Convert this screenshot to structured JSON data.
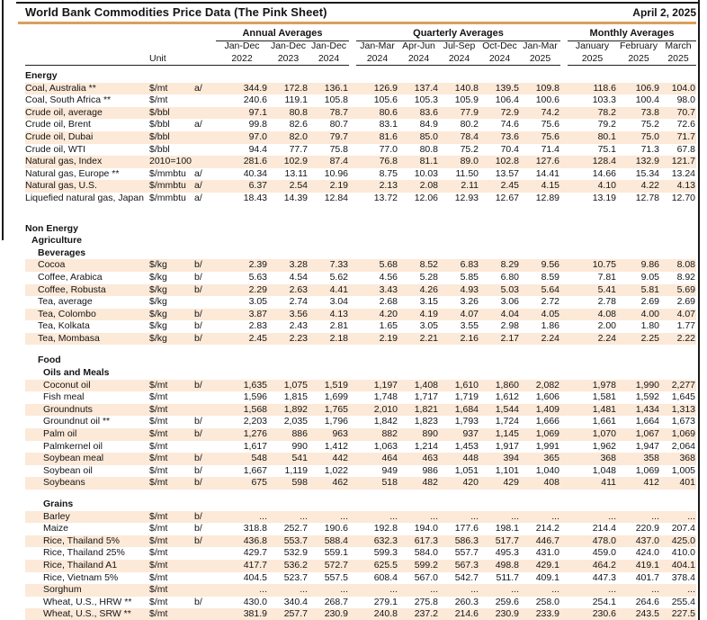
{
  "header": {
    "title": "World Bank Commodities Price Data (The Pink Sheet)",
    "date": "April 2, 2025"
  },
  "colors": {
    "stripe": "#fce9d8",
    "rule": "#d9a05b",
    "ink": "#141414"
  },
  "unit_label": "Unit",
  "column_groups": [
    {
      "label": "Annual Averages",
      "periods": [
        {
          "period": "Jan-Dec",
          "year": "2022"
        },
        {
          "period": "Jan-Dec",
          "year": "2023"
        },
        {
          "period": "Jan-Dec",
          "year": "2024"
        }
      ]
    },
    {
      "label": "Quarterly Averages",
      "periods": [
        {
          "period": "Jan-Mar",
          "year": "2024"
        },
        {
          "period": "Apr-Jun",
          "year": "2024"
        },
        {
          "period": "Jul-Sep",
          "year": "2024"
        },
        {
          "period": "Oct-Dec",
          "year": "2024"
        },
        {
          "period": "Jan-Mar",
          "year": "2025"
        }
      ]
    },
    {
      "label": "Monthly Averages",
      "periods": [
        {
          "period": "January",
          "year": "2025"
        },
        {
          "period": "February",
          "year": "2025"
        },
        {
          "period": "March",
          "year": "2025"
        }
      ]
    }
  ],
  "rows": [
    {
      "type": "section",
      "label": "Energy",
      "indent": 0
    },
    {
      "type": "data",
      "label": "Coal, Australia **",
      "unit": "$/mt",
      "fn": "a/",
      "indent": 0,
      "shaded": true,
      "values": [
        "344.9",
        "172.8",
        "136.1",
        "126.9",
        "137.4",
        "140.8",
        "139.5",
        "109.8",
        "118.6",
        "106.9",
        "104.0"
      ]
    },
    {
      "type": "data",
      "label": "Coal, South Africa **",
      "unit": "$/mt",
      "fn": "",
      "indent": 0,
      "shaded": false,
      "values": [
        "240.6",
        "119.1",
        "105.8",
        "105.6",
        "105.3",
        "105.9",
        "106.4",
        "100.6",
        "103.3",
        "100.4",
        "98.0"
      ]
    },
    {
      "type": "data",
      "label": "Crude oil, average",
      "unit": "$/bbl",
      "fn": "",
      "indent": 0,
      "shaded": true,
      "values": [
        "97.1",
        "80.8",
        "78.7",
        "80.6",
        "83.6",
        "77.9",
        "72.9",
        "74.2",
        "78.2",
        "73.8",
        "70.7"
      ]
    },
    {
      "type": "data",
      "label": "Crude oil, Brent",
      "unit": "$/bbl",
      "fn": "a/",
      "indent": 0,
      "shaded": false,
      "values": [
        "99.8",
        "82.6",
        "80.7",
        "83.1",
        "84.9",
        "80.2",
        "74.6",
        "75.6",
        "79.2",
        "75.2",
        "72.6"
      ]
    },
    {
      "type": "data",
      "label": "Crude oil, Dubai",
      "unit": "$/bbl",
      "fn": "",
      "indent": 0,
      "shaded": true,
      "values": [
        "97.0",
        "82.0",
        "79.7",
        "81.6",
        "85.0",
        "78.4",
        "73.6",
        "75.6",
        "80.1",
        "75.0",
        "71.7"
      ]
    },
    {
      "type": "data",
      "label": "Crude oil, WTI",
      "unit": "$/bbl",
      "fn": "",
      "indent": 0,
      "shaded": false,
      "values": [
        "94.4",
        "77.7",
        "75.8",
        "77.0",
        "80.8",
        "75.2",
        "70.4",
        "71.4",
        "75.1",
        "71.3",
        "67.8"
      ]
    },
    {
      "type": "data",
      "label": "Natural gas, Index",
      "unit": "2010=100",
      "fn": "",
      "indent": 0,
      "shaded": true,
      "values": [
        "281.6",
        "102.9",
        "87.4",
        "76.8",
        "81.1",
        "89.0",
        "102.8",
        "127.6",
        "128.4",
        "132.9",
        "121.7"
      ]
    },
    {
      "type": "data",
      "label": "Natural gas, Europe **",
      "unit": "$/mmbtu",
      "fn": "a/",
      "indent": 0,
      "shaded": false,
      "values": [
        "40.34",
        "13.11",
        "10.96",
        "8.75",
        "10.03",
        "11.50",
        "13.57",
        "14.41",
        "14.66",
        "15.34",
        "13.24"
      ]
    },
    {
      "type": "data",
      "label": "Natural gas, U.S.",
      "unit": "$/mmbtu",
      "fn": "a/",
      "indent": 0,
      "shaded": true,
      "values": [
        "6.37",
        "2.54",
        "2.19",
        "2.13",
        "2.08",
        "2.11",
        "2.45",
        "4.15",
        "4.10",
        "4.22",
        "4.13"
      ]
    },
    {
      "type": "data",
      "label": "Liquefied natural gas, Japan",
      "unit": "$/mmbtu",
      "fn": "a/",
      "indent": 0,
      "shaded": false,
      "values": [
        "18.43",
        "14.39",
        "12.84",
        "13.72",
        "12.06",
        "12.93",
        "12.67",
        "12.89",
        "13.19",
        "12.78",
        "12.70"
      ]
    },
    {
      "type": "gap",
      "height": 20
    },
    {
      "type": "section",
      "label": "Non Energy",
      "indent": 0
    },
    {
      "type": "section",
      "label": "Agriculture",
      "indent": 1
    },
    {
      "type": "section",
      "label": "Beverages",
      "indent": 2
    },
    {
      "type": "data",
      "label": "Cocoa",
      "unit": "$/kg",
      "fn": "b/",
      "indent": 2,
      "shaded": true,
      "values": [
        "2.39",
        "3.28",
        "7.33",
        "5.68",
        "8.52",
        "6.83",
        "8.29",
        "9.56",
        "10.75",
        "9.86",
        "8.08"
      ]
    },
    {
      "type": "data",
      "label": "Coffee, Arabica",
      "unit": "$/kg",
      "fn": "b/",
      "indent": 2,
      "shaded": false,
      "values": [
        "5.63",
        "4.54",
        "5.62",
        "4.56",
        "5.28",
        "5.85",
        "6.80",
        "8.59",
        "7.81",
        "9.05",
        "8.92"
      ]
    },
    {
      "type": "data",
      "label": "Coffee, Robusta",
      "unit": "$/kg",
      "fn": "b/",
      "indent": 2,
      "shaded": true,
      "values": [
        "2.29",
        "2.63",
        "4.41",
        "3.43",
        "4.26",
        "4.93",
        "5.03",
        "5.64",
        "5.41",
        "5.81",
        "5.69"
      ]
    },
    {
      "type": "data",
      "label": "Tea, average",
      "unit": "$/kg",
      "fn": "",
      "indent": 2,
      "shaded": false,
      "values": [
        "3.05",
        "2.74",
        "3.04",
        "2.68",
        "3.15",
        "3.26",
        "3.06",
        "2.72",
        "2.78",
        "2.69",
        "2.69"
      ]
    },
    {
      "type": "data",
      "label": "Tea, Colombo",
      "unit": "$/kg",
      "fn": "b/",
      "indent": 2,
      "shaded": true,
      "values": [
        "3.87",
        "3.56",
        "4.13",
        "4.20",
        "4.19",
        "4.07",
        "4.04",
        "4.05",
        "4.08",
        "4.00",
        "4.07"
      ]
    },
    {
      "type": "data",
      "label": "Tea, Kolkata",
      "unit": "$/kg",
      "fn": "b/",
      "indent": 2,
      "shaded": false,
      "values": [
        "2.83",
        "2.43",
        "2.81",
        "1.65",
        "3.05",
        "3.55",
        "2.98",
        "1.86",
        "2.00",
        "1.80",
        "1.77"
      ]
    },
    {
      "type": "data",
      "label": "Tea, Mombasa",
      "unit": "$/kg",
      "fn": "b/",
      "indent": 2,
      "shaded": true,
      "values": [
        "2.45",
        "2.23",
        "2.18",
        "2.19",
        "2.21",
        "2.16",
        "2.17",
        "2.24",
        "2.24",
        "2.25",
        "2.22"
      ]
    },
    {
      "type": "gap",
      "height": 11
    },
    {
      "type": "section",
      "label": "Food",
      "indent": 2
    },
    {
      "type": "section",
      "label": "Oils and Meals",
      "indent": 3
    },
    {
      "type": "data",
      "label": "Coconut oil",
      "unit": "$/mt",
      "fn": "b/",
      "indent": 3,
      "shaded": true,
      "values": [
        "1,635",
        "1,075",
        "1,519",
        "1,197",
        "1,408",
        "1,610",
        "1,860",
        "2,082",
        "1,978",
        "1,990",
        "2,277"
      ]
    },
    {
      "type": "data",
      "label": "Fish meal",
      "unit": "$/mt",
      "fn": "",
      "indent": 3,
      "shaded": false,
      "values": [
        "1,596",
        "1,815",
        "1,699",
        "1,748",
        "1,717",
        "1,719",
        "1,612",
        "1,606",
        "1,581",
        "1,592",
        "1,645"
      ]
    },
    {
      "type": "data",
      "label": "Groundnuts",
      "unit": "$/mt",
      "fn": "",
      "indent": 3,
      "shaded": true,
      "values": [
        "1,568",
        "1,892",
        "1,765",
        "2,010",
        "1,821",
        "1,684",
        "1,544",
        "1,409",
        "1,481",
        "1,434",
        "1,313"
      ]
    },
    {
      "type": "data",
      "label": "Groundnut oil **",
      "unit": "$/mt",
      "fn": "b/",
      "indent": 3,
      "shaded": false,
      "values": [
        "2,203",
        "2,035",
        "1,796",
        "1,842",
        "1,823",
        "1,793",
        "1,724",
        "1,666",
        "1,661",
        "1,664",
        "1,673"
      ]
    },
    {
      "type": "data",
      "label": "Palm oil",
      "unit": "$/mt",
      "fn": "b/",
      "indent": 3,
      "shaded": true,
      "values": [
        "1,276",
        "886",
        "963",
        "882",
        "890",
        "937",
        "1,145",
        "1,069",
        "1,070",
        "1,067",
        "1,069"
      ]
    },
    {
      "type": "data",
      "label": "Palmkernel oil",
      "unit": "$/mt",
      "fn": "",
      "indent": 3,
      "shaded": false,
      "values": [
        "1,617",
        "990",
        "1,412",
        "1,063",
        "1,214",
        "1,453",
        "1,917",
        "1,991",
        "1,962",
        "1,947",
        "2,064"
      ]
    },
    {
      "type": "data",
      "label": "Soybean meal",
      "unit": "$/mt",
      "fn": "b/",
      "indent": 3,
      "shaded": true,
      "values": [
        "548",
        "541",
        "442",
        "464",
        "463",
        "448",
        "394",
        "365",
        "368",
        "358",
        "368"
      ]
    },
    {
      "type": "data",
      "label": "Soybean oil",
      "unit": "$/mt",
      "fn": "b/",
      "indent": 3,
      "shaded": false,
      "values": [
        "1,667",
        "1,119",
        "1,022",
        "949",
        "986",
        "1,051",
        "1,101",
        "1,040",
        "1,048",
        "1,069",
        "1,005"
      ]
    },
    {
      "type": "data",
      "label": "Soybeans",
      "unit": "$/mt",
      "fn": "b/",
      "indent": 3,
      "shaded": true,
      "values": [
        "675",
        "598",
        "462",
        "518",
        "482",
        "420",
        "429",
        "408",
        "411",
        "412",
        "401"
      ]
    },
    {
      "type": "gap",
      "height": 10
    },
    {
      "type": "section",
      "label": "Grains",
      "indent": 3
    },
    {
      "type": "data",
      "label": "Barley",
      "unit": "$/mt",
      "fn": "b/",
      "indent": 3,
      "shaded": true,
      "values": [
        "...",
        "...",
        "...",
        "...",
        "...",
        "...",
        "...",
        "...",
        "...",
        "...",
        "..."
      ]
    },
    {
      "type": "data",
      "label": "Maize",
      "unit": "$/mt",
      "fn": "b/",
      "indent": 3,
      "shaded": false,
      "values": [
        "318.8",
        "252.7",
        "190.6",
        "192.8",
        "194.0",
        "177.6",
        "198.1",
        "214.2",
        "214.4",
        "220.9",
        "207.4"
      ]
    },
    {
      "type": "data",
      "label": "Rice, Thailand 5%",
      "unit": "$/mt",
      "fn": "b/",
      "indent": 3,
      "shaded": true,
      "values": [
        "436.8",
        "553.7",
        "588.4",
        "632.3",
        "617.3",
        "586.3",
        "517.7",
        "446.7",
        "478.0",
        "437.0",
        "425.0"
      ]
    },
    {
      "type": "data",
      "label": "Rice, Thailand 25%",
      "unit": "$/mt",
      "fn": "",
      "indent": 3,
      "shaded": false,
      "values": [
        "429.7",
        "532.9",
        "559.1",
        "599.3",
        "584.0",
        "557.7",
        "495.3",
        "431.0",
        "459.0",
        "424.0",
        "410.0"
      ]
    },
    {
      "type": "data",
      "label": "Rice, Thailand A1",
      "unit": "$/mt",
      "fn": "",
      "indent": 3,
      "shaded": true,
      "values": [
        "417.7",
        "536.2",
        "572.7",
        "625.5",
        "599.2",
        "567.3",
        "498.8",
        "429.1",
        "464.2",
        "419.1",
        "404.1"
      ]
    },
    {
      "type": "data",
      "label": "Rice, Vietnam 5%",
      "unit": "$/mt",
      "fn": "",
      "indent": 3,
      "shaded": false,
      "values": [
        "404.5",
        "523.7",
        "557.5",
        "608.4",
        "567.0",
        "542.7",
        "511.7",
        "409.1",
        "447.3",
        "401.7",
        "378.4"
      ]
    },
    {
      "type": "data",
      "label": "Sorghum",
      "unit": "$/mt",
      "fn": "",
      "indent": 3,
      "shaded": true,
      "values": [
        "...",
        "...",
        "...",
        "...",
        "...",
        "...",
        "...",
        "...",
        "...",
        "...",
        "..."
      ]
    },
    {
      "type": "data",
      "label": "Wheat, U.S., HRW **",
      "unit": "$/mt",
      "fn": "b/",
      "indent": 3,
      "shaded": false,
      "values": [
        "430.0",
        "340.4",
        "268.7",
        "279.1",
        "275.8",
        "260.3",
        "259.6",
        "258.0",
        "254.1",
        "264.6",
        "255.4"
      ]
    },
    {
      "type": "data",
      "label": "Wheat, U.S., SRW **",
      "unit": "$/mt",
      "fn": "",
      "indent": 3,
      "shaded": true,
      "values": [
        "381.9",
        "257.7",
        "230.9",
        "240.8",
        "237.2",
        "214.6",
        "230.9",
        "233.9",
        "230.6",
        "243.5",
        "227.5"
      ]
    }
  ]
}
